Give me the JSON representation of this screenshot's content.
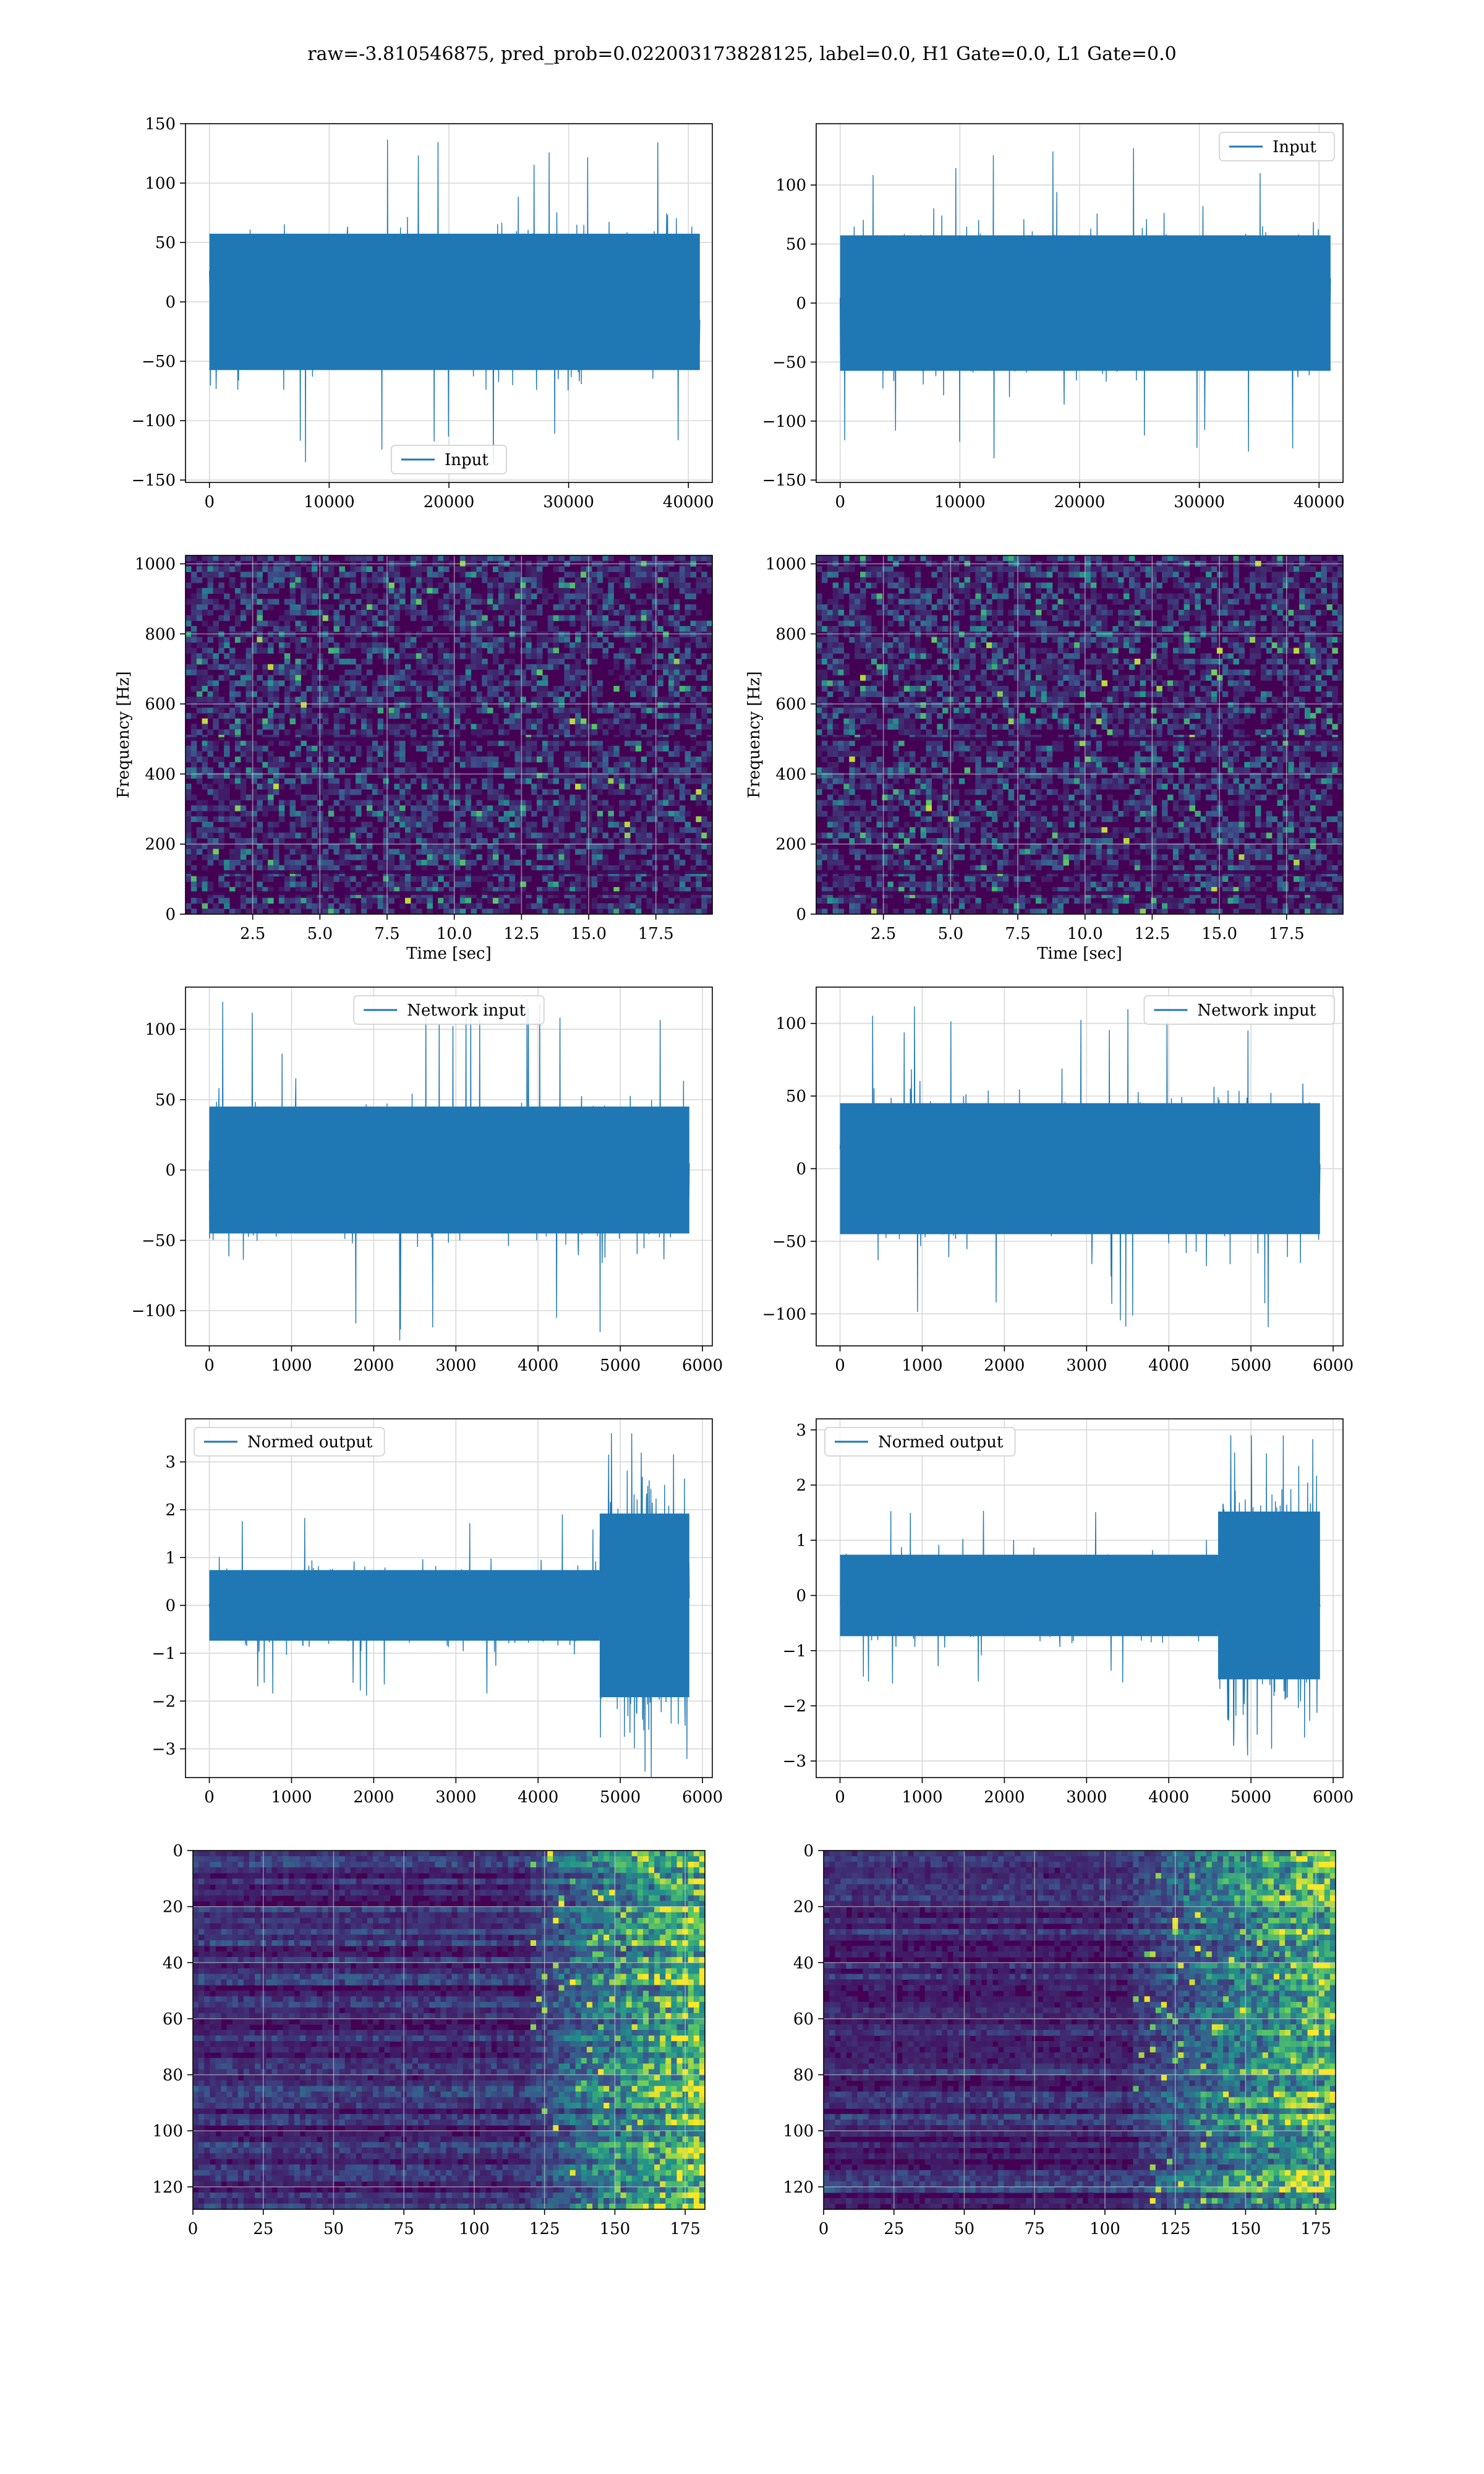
{
  "suptitle": "raw=-3.810546875, pred_prob=0.022003173828125, label=0.0, H1 Gate=0.0, L1 Gate=0.0",
  "colors": {
    "line": "#1f77b4",
    "grid": "#d8d8d8",
    "viridis_dark": "#440154",
    "viridis_mid": "#3b528b",
    "viridis_teal": "#21918c",
    "viridis_green": "#5ec962",
    "viridis_yellow": "#fde725"
  },
  "chart_data": [
    {
      "id": "h1-input",
      "type": "line",
      "series": [
        {
          "name": "Input",
          "amplitude_typical": 70,
          "amplitude_peak": 137
        }
      ],
      "legend_placement": "lower-center",
      "xlim": [
        -2000,
        42000
      ],
      "ylim": [
        -152,
        150
      ],
      "xticks": [
        0,
        10000,
        20000,
        30000,
        40000
      ],
      "yticks": [
        -150,
        -100,
        -50,
        0,
        50,
        100,
        150
      ],
      "x_extent": [
        0,
        40959
      ],
      "grid": true
    },
    {
      "id": "l1-input",
      "type": "line",
      "series": [
        {
          "name": "Input",
          "amplitude_typical": 70,
          "amplitude_peak": 133
        }
      ],
      "legend_placement": "upper-right",
      "xlim": [
        -2000,
        42000
      ],
      "ylim": [
        -152,
        152
      ],
      "xticks": [
        0,
        10000,
        20000,
        30000,
        40000
      ],
      "yticks": [
        -150,
        -100,
        -50,
        0,
        50,
        100
      ],
      "x_extent": [
        0,
        40959
      ],
      "grid": true
    },
    {
      "id": "h1-spectrogram",
      "type": "heatmap",
      "xlabel": "Time [sec]",
      "ylabel": "Frequency [Hz]",
      "xlim": [
        0,
        19.6
      ],
      "ylim": [
        0,
        1024
      ],
      "xticks": [
        2.5,
        5.0,
        7.5,
        10.0,
        12.5,
        15.0,
        17.5
      ],
      "yticks": [
        0,
        200,
        400,
        600,
        800,
        1000
      ],
      "grid": true
    },
    {
      "id": "l1-spectrogram",
      "type": "heatmap",
      "xlabel": "Time [sec]",
      "ylabel": "Frequency [Hz]",
      "xlim": [
        0,
        19.6
      ],
      "ylim": [
        0,
        1024
      ],
      "xticks": [
        2.5,
        5.0,
        7.5,
        10.0,
        12.5,
        15.0,
        17.5
      ],
      "yticks": [
        0,
        200,
        400,
        600,
        800,
        1000
      ],
      "grid": true
    },
    {
      "id": "h1-network-input",
      "type": "line",
      "series": [
        {
          "name": "Network input",
          "amplitude_typical": 55,
          "amplitude_peak": 122
        }
      ],
      "legend_placement": "upper-center",
      "xlim": [
        -290,
        6120
      ],
      "ylim": [
        -125,
        130
      ],
      "xticks": [
        0,
        1000,
        2000,
        3000,
        4000,
        5000,
        6000
      ],
      "yticks": [
        -100,
        -50,
        0,
        50,
        100
      ],
      "x_extent": [
        0,
        5840
      ],
      "grid": true
    },
    {
      "id": "l1-network-input",
      "type": "line",
      "series": [
        {
          "name": "Network input",
          "amplitude_typical": 55,
          "amplitude_peak": 112
        }
      ],
      "legend_placement": "upper-right",
      "xlim": [
        -290,
        6120
      ],
      "ylim": [
        -122,
        125
      ],
      "xticks": [
        0,
        1000,
        2000,
        3000,
        4000,
        5000,
        6000
      ],
      "yticks": [
        -100,
        -50,
        0,
        50,
        100
      ],
      "x_extent": [
        0,
        5840
      ],
      "grid": true
    },
    {
      "id": "h1-normed-output",
      "type": "line",
      "series": [
        {
          "name": "Normed output",
          "amplitude_typical": 0.9,
          "amplitude_peak": 3.6,
          "burst_start_x": 4750,
          "burst_amplitude": 2.4
        }
      ],
      "legend_placement": "upper-left",
      "xlim": [
        -290,
        6120
      ],
      "ylim": [
        -3.6,
        3.9
      ],
      "xticks": [
        0,
        1000,
        2000,
        3000,
        4000,
        5000,
        6000
      ],
      "yticks": [
        -3,
        -2,
        -1,
        0,
        1,
        2,
        3
      ],
      "x_extent": [
        0,
        5840
      ],
      "grid": true
    },
    {
      "id": "l1-normed-output",
      "type": "line",
      "series": [
        {
          "name": "Normed output",
          "amplitude_typical": 0.9,
          "amplitude_peak": 2.9,
          "burst_start_x": 4600,
          "burst_amplitude": 1.9
        }
      ],
      "legend_placement": "upper-left",
      "xlim": [
        -290,
        6120
      ],
      "ylim": [
        -3.3,
        3.2
      ],
      "xticks": [
        0,
        1000,
        2000,
        3000,
        4000,
        5000,
        6000
      ],
      "yticks": [
        -3,
        -2,
        -1,
        0,
        1,
        2,
        3
      ],
      "x_extent": [
        0,
        5840
      ],
      "grid": true
    },
    {
      "id": "h1-feature-map",
      "type": "heatmap",
      "xlim": [
        0,
        182
      ],
      "ylim": [
        128,
        0
      ],
      "xticks": [
        0,
        25,
        50,
        75,
        100,
        125,
        150,
        175
      ],
      "yticks": [
        0,
        20,
        40,
        60,
        80,
        100,
        120
      ],
      "activity_rises_after_x": 120,
      "grid": true
    },
    {
      "id": "l1-feature-map",
      "type": "heatmap",
      "xlim": [
        0,
        182
      ],
      "ylim": [
        128,
        0
      ],
      "xticks": [
        0,
        25,
        50,
        75,
        100,
        125,
        150,
        175
      ],
      "yticks": [
        0,
        20,
        40,
        60,
        80,
        100,
        120
      ],
      "activity_rises_after_x": 110,
      "grid": true
    }
  ]
}
